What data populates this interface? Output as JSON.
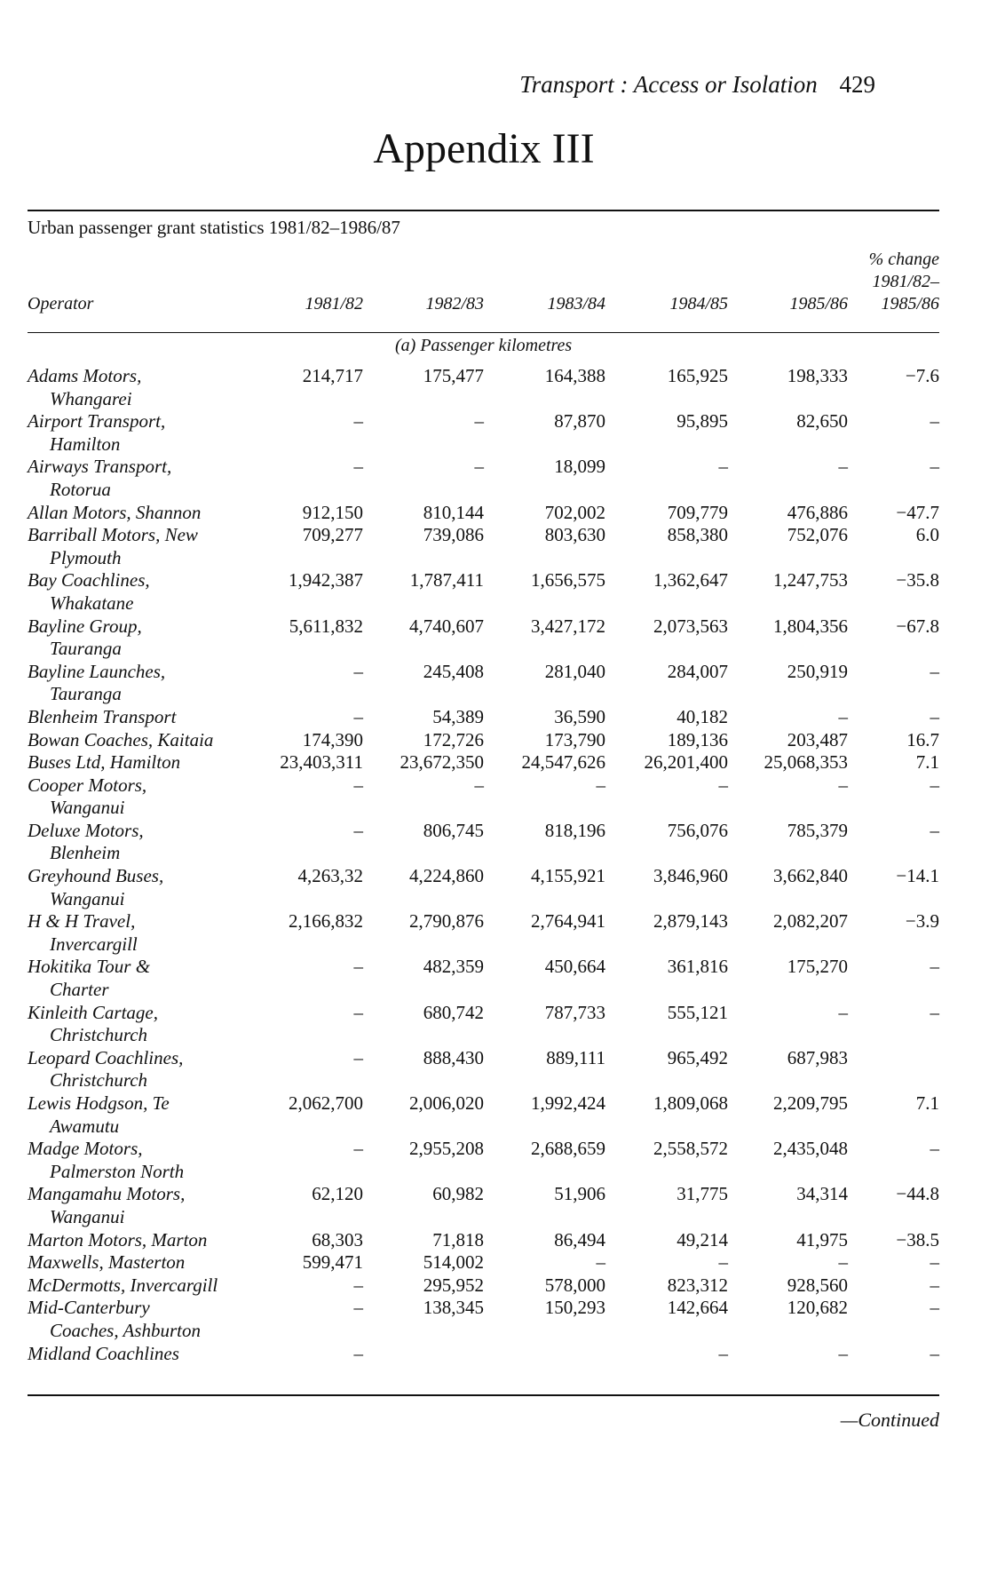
{
  "running_head": {
    "title": "Transport : Access or Isolation",
    "page_number": "429"
  },
  "appendix_title": "Appendix III",
  "caption": "Urban passenger grant statistics 1981/82–1986/87",
  "columns": {
    "operator": "Operator",
    "y1": "1981/82",
    "y2": "1982/83",
    "y3": "1983/84",
    "y4": "1984/85",
    "y5": "1985/86",
    "change_l1": "% change",
    "change_l2": "1981/82–",
    "change_l3": "1985/86"
  },
  "section_label": "(a) Passenger kilometres",
  "rows": [
    {
      "name": [
        "Adams Motors,",
        "Whangarei"
      ],
      "values": [
        "214,717",
        "175,477",
        "164,388",
        "165,925",
        "198,333",
        "−7.6"
      ]
    },
    {
      "name": [
        "Airport Transport,",
        "Hamilton"
      ],
      "values": [
        "–",
        "–",
        "87,870",
        "95,895",
        "82,650",
        "–"
      ]
    },
    {
      "name": [
        "Airways Transport,",
        "Rotorua"
      ],
      "values": [
        "–",
        "–",
        "18,099",
        "–",
        "–",
        "–"
      ]
    },
    {
      "name": [
        "Allan Motors, Shannon"
      ],
      "values": [
        "912,150",
        "810,144",
        "702,002",
        "709,779",
        "476,886",
        "−47.7"
      ]
    },
    {
      "name": [
        "Barriball Motors, New",
        "Plymouth"
      ],
      "values": [
        "709,277",
        "739,086",
        "803,630",
        "858,380",
        "752,076",
        "6.0"
      ]
    },
    {
      "name": [
        "Bay Coachlines,",
        "Whakatane"
      ],
      "values": [
        "1,942,387",
        "1,787,411",
        "1,656,575",
        "1,362,647",
        "1,247,753",
        "−35.8"
      ]
    },
    {
      "name": [
        "Bayline Group,",
        "Tauranga"
      ],
      "values": [
        "5,611,832",
        "4,740,607",
        "3,427,172",
        "2,073,563",
        "1,804,356",
        "−67.8"
      ]
    },
    {
      "name": [
        "Bayline Launches,",
        "Tauranga"
      ],
      "values": [
        "–",
        "245,408",
        "281,040",
        "284,007",
        "250,919",
        "–"
      ]
    },
    {
      "name": [
        "Blenheim Transport"
      ],
      "values": [
        "–",
        "54,389",
        "36,590",
        "40,182",
        "–",
        "–"
      ]
    },
    {
      "name": [
        "Bowan Coaches, Kaitaia"
      ],
      "values": [
        "174,390",
        "172,726",
        "173,790",
        "189,136",
        "203,487",
        "16.7"
      ]
    },
    {
      "name": [
        "Buses Ltd, Hamilton"
      ],
      "values": [
        "23,403,311",
        "23,672,350",
        "24,547,626",
        "26,201,400",
        "25,068,353",
        "7.1"
      ]
    },
    {
      "name": [
        "Cooper Motors,",
        "Wanganui"
      ],
      "values": [
        "–",
        "–",
        "–",
        "–",
        "–",
        "–"
      ]
    },
    {
      "name": [
        "Deluxe Motors,",
        "Blenheim"
      ],
      "values": [
        "–",
        "806,745",
        "818,196",
        "756,076",
        "785,379",
        "–"
      ]
    },
    {
      "name": [
        "Greyhound Buses,",
        "Wanganui"
      ],
      "values": [
        "4,263,32",
        "4,224,860",
        "4,155,921",
        "3,846,960",
        "3,662,840",
        "−14.1"
      ]
    },
    {
      "name": [
        "H & H Travel,",
        "Invercargill"
      ],
      "values": [
        "2,166,832",
        "2,790,876",
        "2,764,941",
        "2,879,143",
        "2,082,207",
        "−3.9"
      ]
    },
    {
      "name": [
        "Hokitika Tour &",
        "Charter"
      ],
      "values": [
        "–",
        "482,359",
        "450,664",
        "361,816",
        "175,270",
        "–"
      ]
    },
    {
      "name": [
        "Kinleith Cartage,",
        "Christchurch"
      ],
      "values": [
        "–",
        "680,742",
        "787,733",
        "555,121",
        "–",
        "–"
      ]
    },
    {
      "name": [
        "Leopard Coachlines,",
        "Christchurch"
      ],
      "values": [
        "–",
        "888,430",
        "889,111",
        "965,492",
        "687,983",
        ""
      ]
    },
    {
      "name": [
        "Lewis Hodgson, Te",
        "Awamutu"
      ],
      "values": [
        "2,062,700",
        "2,006,020",
        "1,992,424",
        "1,809,068",
        "2,209,795",
        "7.1"
      ]
    },
    {
      "name": [
        "Madge Motors,",
        "Palmerston North"
      ],
      "values": [
        "–",
        "2,955,208",
        "2,688,659",
        "2,558,572",
        "2,435,048",
        "–"
      ]
    },
    {
      "name": [
        "Mangamahu Motors,",
        "Wanganui"
      ],
      "values": [
        "62,120",
        "60,982",
        "51,906",
        "31,775",
        "34,314",
        "−44.8"
      ]
    },
    {
      "name": [
        "Marton Motors, Marton"
      ],
      "values": [
        "68,303",
        "71,818",
        "86,494",
        "49,214",
        "41,975",
        "−38.5"
      ]
    },
    {
      "name": [
        "Maxwells, Masterton"
      ],
      "values": [
        "599,471",
        "514,002",
        "–",
        "–",
        "–",
        "–"
      ]
    },
    {
      "name": [
        "McDermotts, Invercargill"
      ],
      "values": [
        "–",
        "295,952",
        "578,000",
        "823,312",
        "928,560",
        "–"
      ]
    },
    {
      "name": [
        "Mid-Canterbury",
        "Coaches, Ashburton"
      ],
      "values": [
        "–",
        "138,345",
        "150,293",
        "142,664",
        "120,682",
        "–"
      ]
    },
    {
      "name": [
        "Midland Coachlines"
      ],
      "values": [
        "–",
        "",
        "",
        "–",
        "–",
        "–"
      ]
    }
  ],
  "continued": "—Continued"
}
